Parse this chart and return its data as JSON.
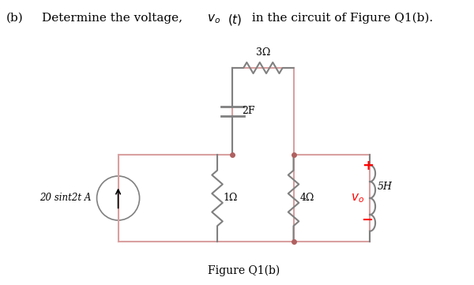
{
  "title_part_b": "(b)",
  "title_text": "Determine the voltage, ",
  "title_vo": "v",
  "title_o_sub": "o",
  "title_rest": "(t) in the circuit of Figure Q1(b).",
  "fig_label": "Figure Q1(b)",
  "circuit_color": "#d9a0a0",
  "bg_color": "#ffffff",
  "source_label": "20 sint2t A",
  "r1_label": "1Ω",
  "r2_label": "3Ω",
  "r3_label": "4Ω",
  "c_label": "2F",
  "l_label": "5H",
  "vo_label": "vₒ"
}
